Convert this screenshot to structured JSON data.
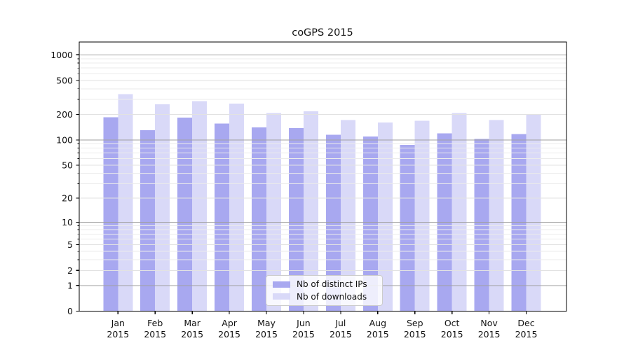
{
  "figure": {
    "title": "coGPS 2015",
    "background": "#ffffff"
  },
  "chart_data": {
    "type": "bar",
    "title": "coGPS 2015",
    "xlabel": "",
    "ylabel": "",
    "categories": [
      "Jan 2015",
      "Feb 2015",
      "Mar 2015",
      "Apr 2015",
      "May 2015",
      "Jun 2015",
      "Jul 2015",
      "Aug 2015",
      "Sep 2015",
      "Oct 2015",
      "Nov 2015",
      "Dec 2015"
    ],
    "series": [
      {
        "name": "Nb of distinct IPs",
        "color": "#a8a8f0",
        "values": [
          185,
          130,
          184,
          156,
          140,
          138,
          115,
          110,
          87,
          119,
          103,
          117
        ]
      },
      {
        "name": "Nb of downloads",
        "color": "#d9d9f8",
        "values": [
          345,
          262,
          285,
          269,
          207,
          217,
          171,
          161,
          169,
          207,
          171,
          201
        ]
      }
    ],
    "yscale": "symlog (log1p)",
    "ylim": [
      0,
      1400
    ],
    "yticks": [
      0,
      1,
      2,
      5,
      10,
      20,
      50,
      100,
      200,
      500,
      1000
    ],
    "major_gridlines": [
      1,
      10,
      100,
      1000
    ],
    "labeled_minor_gridlines": [
      2,
      5,
      20,
      50,
      200,
      500
    ],
    "minor_gridlines": [
      3,
      4,
      6,
      7,
      8,
      9,
      30,
      40,
      60,
      70,
      80,
      90,
      300,
      400,
      600,
      700,
      800,
      900
    ],
    "grid": true,
    "legend": {
      "position": "lower center inside plot",
      "labels": [
        "Nb of distinct IPs",
        "Nb of downloads"
      ]
    }
  },
  "colors": {
    "bar_distinct_ips": "#a8a8f0",
    "bar_downloads": "#d9d9f8",
    "grid_major": "#9f9f9f",
    "grid_minor": "#ebebeb",
    "grid_labeled_minor": "#e2e2e2",
    "axis_frame": "#000000",
    "text": "#111111"
  }
}
